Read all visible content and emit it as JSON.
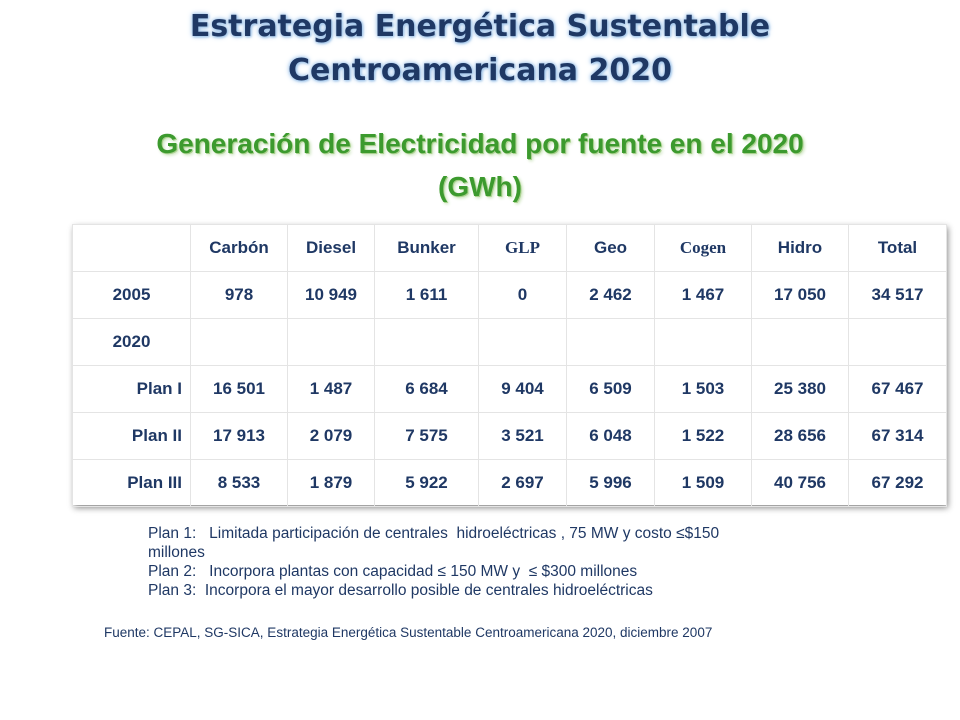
{
  "title": {
    "line1": "Estrategia Energética Sustentable",
    "line2": "Centroamericana 2020"
  },
  "subtitle": {
    "line1": "Generación de Electricidad por fuente en el 2020",
    "line2": "(GWh)"
  },
  "table": {
    "headers": [
      "",
      "Carbón",
      "Diesel",
      "Bunker",
      "GLP",
      "Geo",
      "Cogen",
      "Hidro",
      "Total"
    ],
    "rows": [
      {
        "label": "2005",
        "values": [
          "978",
          "10 949",
          "1 611",
          "0",
          "2 462",
          "1 467",
          "17 050",
          "34 517"
        ]
      },
      {
        "label": "2020",
        "values": [
          "",
          "",
          "",
          "",
          "",
          "",
          "",
          ""
        ]
      },
      {
        "label": "Plan I",
        "values": [
          "16 501",
          "1 487",
          "6 684",
          "9 404",
          "6 509",
          "1 503",
          "25 380",
          "67 467"
        ]
      },
      {
        "label": "Plan II",
        "values": [
          "17 913",
          "2 079",
          "7 575",
          "3 521",
          "6 048",
          "1 522",
          "28 656",
          "67 314"
        ]
      },
      {
        "label": "Plan III",
        "values": [
          "8 533",
          "1 879",
          "5 922",
          "2 697",
          "5 996",
          "1 509",
          "40 756",
          "67 292"
        ]
      }
    ]
  },
  "notes": [
    "Plan 1:   Limitada participación de centrales  hidroeléctricas , 75 MW y costo ≤$150",
    "millones",
    "Plan 2:   Incorpora plantas con capacidad ≤ 150 MW y  ≤ $300 millones",
    "Plan 3:  Incorpora el mayor desarrollo posible de centrales hidroeléctricas"
  ],
  "source": "Fuente:  CEPAL, SG-SICA,  Estrategia Energética Sustentable Centroamericana 2020, diciembre 2007"
}
